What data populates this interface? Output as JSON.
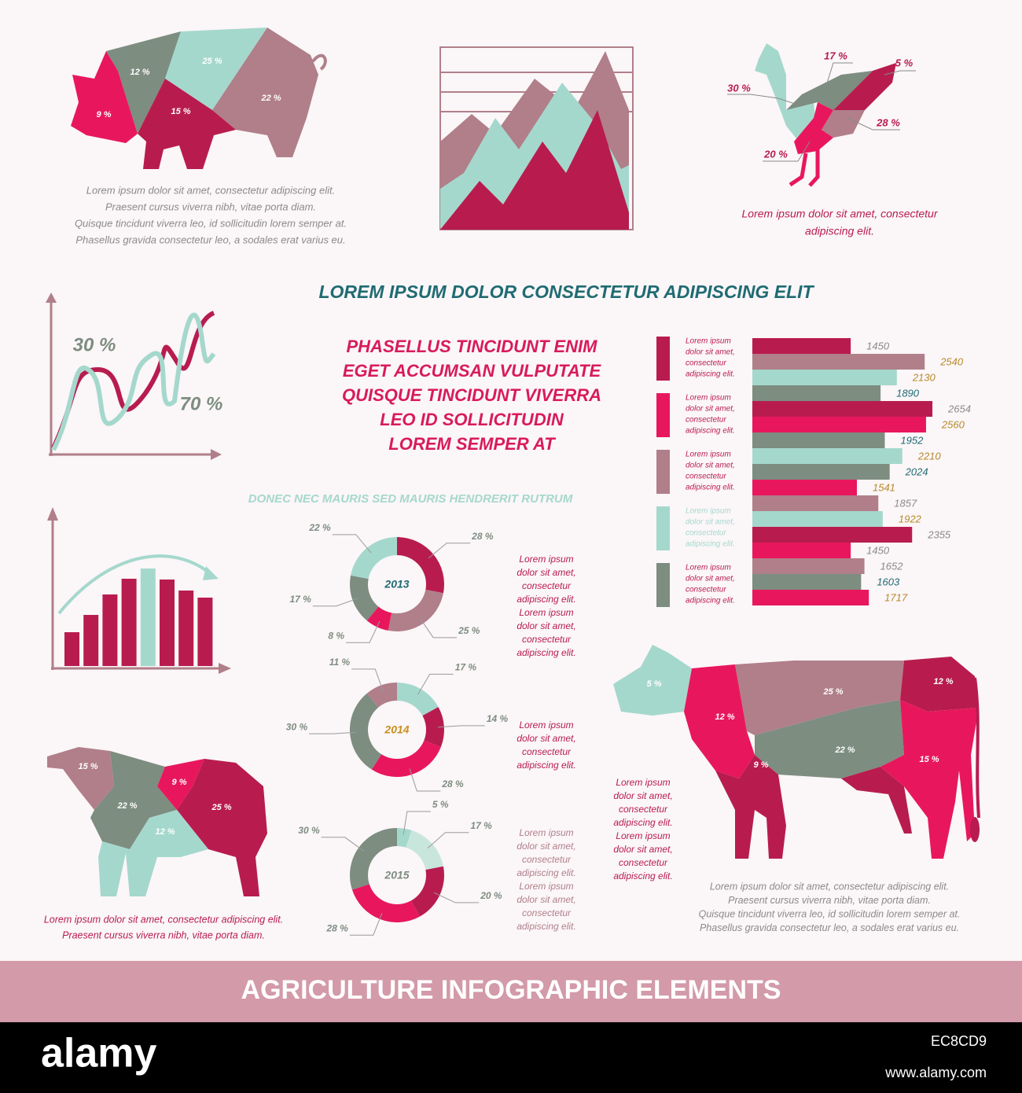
{
  "pig": {
    "labels": [
      "12 %",
      "25 %",
      "9 %",
      "15 %",
      "22 %"
    ],
    "text": [
      "Lorem ipsum dolor sit amet, consectetur  adipiscing elit.",
      "Praesent cursus viverra nibh, vitae porta diam.",
      "Quisque tincidunt viverra leo, id sollicitudin lorem semper at.",
      "Phasellus gravida consectetur leo, a sodales erat varius eu."
    ]
  },
  "chicken": {
    "labels": [
      "17 %",
      "5 %",
      "30 %",
      "28 %",
      "20 %"
    ],
    "text": [
      "Lorem ipsum dolor sit amet, consectetur",
      "adipiscing elit."
    ]
  },
  "heading": "LOREM IPSUM DOLOR CONSECTETUR ADIPISCING ELIT",
  "highlight": [
    "PHASELLUS TINCIDUNT ENIM",
    "EGET ACCUMSAN VULPUTATE",
    "QUISQUE TINCIDUNT VIVERRA",
    "LEO ID SOLLICITUDIN",
    "LOREM SEMPER AT"
  ],
  "wave": {
    "labels": [
      "30 %",
      "70 %"
    ]
  },
  "subheading": "DONEC NEC MAURIS SED  MAURIS HENDRERIT RUTRUM",
  "legend": [
    [
      "Lorem ipsum",
      "dolor sit amet,",
      "consectetur",
      "adipiscing elit."
    ],
    [
      "Lorem ipsum",
      "dolor sit amet,",
      "consectetur",
      "adipiscing elit."
    ],
    [
      "Lorem ipsum",
      "dolor sit amet,",
      "consectetur",
      "adipiscing elit."
    ],
    [
      "Lorem ipsum",
      "dolor sit amet,",
      "consectetur",
      "adipiscing elit."
    ],
    [
      "Lorem ipsum",
      "dolor sit amet,",
      "consectetur",
      "adipiscing elit."
    ]
  ],
  "legend_colors": [
    "#b81c4f",
    "#e8175d",
    "#b07f8a",
    "#a5d8cc",
    "#7d8d80"
  ],
  "donut_notes": [
    [
      "Lorem ipsum",
      "dolor sit amet,",
      "consectetur",
      "adipiscing elit.",
      "Lorem ipsum",
      "dolor sit amet,",
      "consectetur",
      "adipiscing elit."
    ],
    [
      "Lorem ipsum",
      "dolor sit amet,",
      "consectetur",
      "adipiscing elit."
    ],
    [
      "Lorem ipsum",
      "dolor sit amet,",
      "consectetur",
      "adipiscing elit.",
      "Lorem ipsum",
      "dolor sit amet,",
      "consectetur",
      "adipiscing elit."
    ]
  ],
  "cow": {
    "labels": [
      "5 %",
      "25 %",
      "12 %",
      "12 %",
      "22 %",
      "9 %",
      "15 %"
    ],
    "note": [
      "Lorem ipsum",
      "dolor sit amet,",
      "consectetur",
      "adipiscing elit.",
      "Lorem ipsum",
      "dolor sit amet,",
      "consectetur",
      "adipiscing elit."
    ],
    "text": [
      "Lorem ipsum dolor sit amet, consectetur  adipiscing elit.",
      "Praesent cursus viverra nibh, vitae porta diam.",
      "Quisque tincidunt viverra leo, id sollicitudin lorem semper at.",
      "Phasellus gravida consectetur leo, a sodales erat varius eu."
    ]
  },
  "sheep": {
    "labels": [
      "15 %",
      "9 %",
      "22 %",
      "25 %",
      "12 %"
    ],
    "text": [
      "Lorem ipsum dolor sit amet, consectetur  adipiscing elit.",
      "Praesent cursus viverra nibh, vitae porta diam."
    ]
  },
  "footer": {
    "title": "AGRICULTURE INFOGRAPHIC ELEMENTS"
  },
  "watermark": {
    "logo": "alamy",
    "id": "EC8CD9",
    "url": "www.alamy.com"
  },
  "chart_data": [
    {
      "type": "hbar",
      "values": [
        1450,
        2540,
        2130,
        1890,
        2654,
        2560,
        1952,
        2210,
        2024,
        1541,
        1857,
        1922,
        2355,
        1450,
        1652,
        1603,
        1717
      ],
      "colors": [
        "#b81c4f",
        "#b07f8a",
        "#a5d8cc",
        "#7d8d80",
        "#b81c4f",
        "#e8175d",
        "#7d8d80",
        "#a5d8cc",
        "#7d8d80",
        "#e8175d",
        "#b07f8a",
        "#a5d8cc",
        "#b81c4f",
        "#e8175d",
        "#b07f8a",
        "#7d8d80",
        "#e8175d"
      ],
      "label_colors": [
        "#8a8a8a",
        "#b58a2a",
        "#b58a2a",
        "#1f6b72",
        "#8a8a8a",
        "#b58a2a",
        "#1f6b72",
        "#b58a2a",
        "#1f6b72",
        "#b58a2a",
        "#8a8a8a",
        "#b58a2a",
        "#8a8a8a",
        "#8a8a8a",
        "#8a8a8a",
        "#1f6b72",
        "#b58a2a"
      ]
    },
    {
      "type": "donut",
      "title": "2013",
      "title_color": "#1f6b72",
      "values": [
        28,
        25,
        8,
        17,
        22
      ],
      "value_labels": [
        "28 %",
        "25 %",
        "8 %",
        "17 %",
        "22 %"
      ],
      "colors": [
        "#b81c4f",
        "#b07f8a",
        "#e8175d",
        "#7d8d80",
        "#a5d8cc"
      ]
    },
    {
      "type": "donut",
      "title": "2014",
      "title_color": "#c8901e",
      "values": [
        17,
        14,
        28,
        30,
        11
      ],
      "value_labels": [
        "17 %",
        "14 %",
        "28 %",
        "30 %",
        "11 %"
      ],
      "colors": [
        "#a5d8cc",
        "#b81c4f",
        "#e8175d",
        "#7d8d80",
        "#b07f8a"
      ]
    },
    {
      "type": "donut",
      "title": "2015",
      "title_color": "#7d8d80",
      "values": [
        5,
        17,
        20,
        28,
        30
      ],
      "value_labels": [
        "5 %",
        "17 %",
        "20 %",
        "28 %",
        "30 %"
      ],
      "colors": [
        "#a5d8cc",
        "#c9e6dd",
        "#b81c4f",
        "#e8175d",
        "#7d8d80"
      ]
    },
    {
      "type": "bar",
      "values": [
        43,
        65,
        91,
        111,
        124,
        110,
        96,
        87
      ],
      "colors": [
        "#b81c4f",
        "#b81c4f",
        "#b81c4f",
        "#b81c4f",
        "#a5d8cc",
        "#b81c4f",
        "#b81c4f",
        "#b81c4f"
      ]
    }
  ]
}
